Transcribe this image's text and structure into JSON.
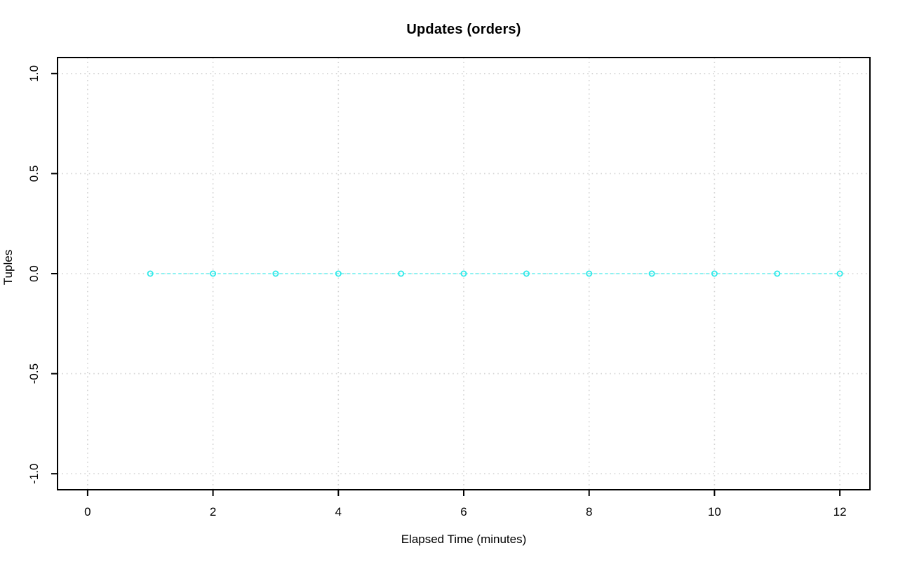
{
  "chart_data": {
    "type": "line",
    "title": "Updates (orders)",
    "xlabel": "Elapsed Time (minutes)",
    "ylabel": "Tuples",
    "x": [
      1,
      2,
      3,
      4,
      5,
      6,
      7,
      8,
      9,
      10,
      11,
      12
    ],
    "series": [
      {
        "name": "Updates (orders)",
        "values": [
          0,
          0,
          0,
          0,
          0,
          0,
          0,
          0,
          0,
          0,
          0,
          0
        ]
      }
    ],
    "xlim": [
      -0.48,
      12.48
    ],
    "ylim": [
      -1.08,
      1.08
    ],
    "xticks": {
      "values": [
        0,
        2,
        4,
        6,
        8,
        10,
        12
      ],
      "labels": [
        "0",
        "2",
        "4",
        "6",
        "8",
        "10",
        "12"
      ]
    },
    "yticks": {
      "values": [
        1.0,
        0.5,
        0.0,
        -0.5,
        -1.0
      ],
      "labels": [
        "1.0",
        "0.5",
        "0.0",
        "-0.5",
        "-1.0"
      ]
    },
    "grid": {
      "visible": true,
      "style": "dotted",
      "color": "#d3d3d3"
    },
    "line": {
      "style": "dashed",
      "color": "#8df2f2"
    },
    "marker": {
      "shape": "open-circle",
      "color": "#2fe9e9"
    },
    "axis_color": "#000000",
    "text_color": "#000000",
    "background": "#ffffff",
    "legend_position": "none"
  }
}
